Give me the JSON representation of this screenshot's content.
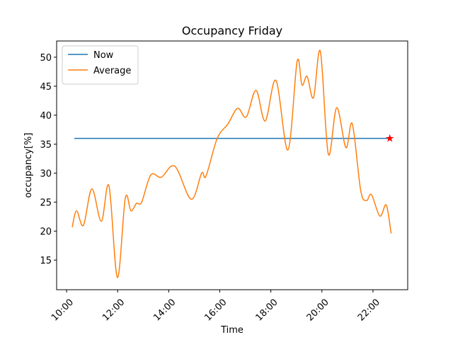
{
  "chart_data": {
    "type": "line",
    "title": "Occupancy Friday",
    "x_label": "Time",
    "y_label": "occupancy[%]",
    "xlim": [
      9.61,
      23.36
    ],
    "ylim": [
      9.9,
      52.8
    ],
    "xticks": [
      {
        "value": 10,
        "label": "10:00"
      },
      {
        "value": 12,
        "label": "12:00"
      },
      {
        "value": 14,
        "label": "14:00"
      },
      {
        "value": 16,
        "label": "16:00"
      },
      {
        "value": 18,
        "label": "18:00"
      },
      {
        "value": 20,
        "label": "20:00"
      },
      {
        "value": 22,
        "label": "22:00"
      }
    ],
    "yticks": [
      15,
      20,
      25,
      30,
      35,
      40,
      45,
      50
    ],
    "legend": "upper left",
    "series": [
      {
        "name": "Now",
        "color": "#1f77b4",
        "x": [
          10.3,
          22.66
        ],
        "values": [
          36,
          36
        ]
      },
      {
        "name": "Average",
        "color": "#ff7f0e",
        "x": [
          10.22,
          10.39,
          10.66,
          10.99,
          11.36,
          11.66,
          11.99,
          12.3,
          12.52,
          12.74,
          12.94,
          13.3,
          13.71,
          14.24,
          14.88,
          15.29,
          15.46,
          15.9,
          16.32,
          16.7,
          17.04,
          17.42,
          17.78,
          18.2,
          18.67,
          19.03,
          19.22,
          19.42,
          19.67,
          19.94,
          20.25,
          20.58,
          20.94,
          21.19,
          21.52,
          21.75,
          21.94,
          22.27,
          22.52,
          22.71
        ],
        "values": [
          20.7,
          23.5,
          21,
          27.3,
          21.7,
          27.8,
          12,
          25.7,
          23.5,
          24.8,
          25,
          29.7,
          29.3,
          31.2,
          25.5,
          30,
          29.5,
          36,
          38.5,
          41.2,
          39.7,
          44.3,
          39,
          46,
          34,
          49.3,
          45.2,
          46.7,
          43,
          51,
          33.3,
          41.3,
          34.4,
          38.5,
          27,
          25.3,
          26.3,
          22.6,
          24.5,
          19.6
        ]
      }
    ],
    "points": [
      {
        "x": 22.66,
        "y": 36,
        "color": "#ff0000",
        "marker": "star"
      }
    ]
  }
}
